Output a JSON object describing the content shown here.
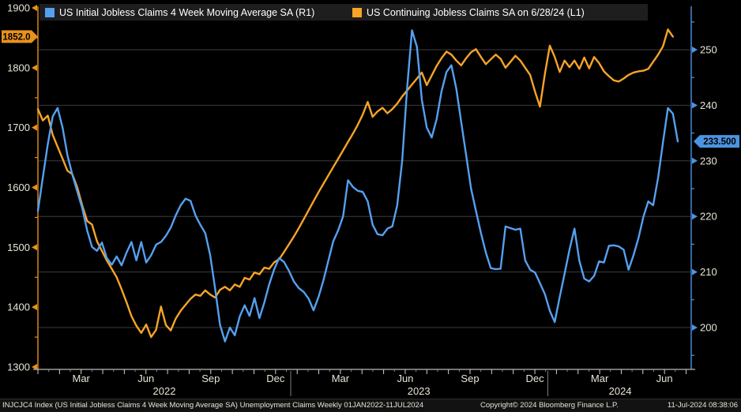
{
  "legend": {
    "items": [
      {
        "label": "US Initial Jobless Claims 4 Week Moving Average SA  (R1)",
        "color": "#55a0f0"
      },
      {
        "label": "US Continuing Jobless Claims SA  on 6/28/24 (L1)",
        "color": "#f7a428"
      }
    ]
  },
  "status_bar": {
    "description": "INJCJC4 Index (US Initial Jobless Claims 4 Week Moving Average SA) Unemployment Claims  Weekly 01JAN2022-11JUL2024",
    "copyright": "Copyright© 2024 Bloomberg Finance L.P.",
    "timestamp": "11-Jul-2024 08:38:06"
  },
  "chart_data": {
    "type": "line",
    "x_range_label": "01JAN2022-11JUL2024",
    "grid_color": "#3c3c3c",
    "left_axis": {
      "color": "#e8921c",
      "major_ticks": [
        1900,
        1800,
        1700,
        1600,
        1500,
        1400,
        1300
      ],
      "minor_ticks": [
        1850,
        1750,
        1650,
        1550,
        1450,
        1350
      ],
      "last_value": 1852.0,
      "last_value_label": "1852.0",
      "range": [
        1293,
        1903
      ]
    },
    "right_axis": {
      "color": "#4d93e0",
      "major_ticks": [
        250,
        240,
        230,
        220,
        210,
        200
      ],
      "minor_ticks": [
        255,
        245,
        235,
        225,
        215,
        205,
        195
      ],
      "last_value": 233.5,
      "last_value_label": "233.500",
      "range": [
        192,
        258
      ]
    },
    "x_axis": {
      "month_labels": [
        {
          "label": "Mar",
          "m": 2
        },
        {
          "label": "Jun",
          "m": 5
        },
        {
          "label": "Sep",
          "m": 8
        },
        {
          "label": "Dec",
          "m": 11
        },
        {
          "label": "Mar",
          "m": 14
        },
        {
          "label": "Jun",
          "m": 17
        },
        {
          "label": "Sep",
          "m": 20
        },
        {
          "label": "Dec",
          "m": 23
        },
        {
          "label": "Mar",
          "m": 26
        },
        {
          "label": "Jun",
          "m": 29
        }
      ],
      "year_labels": [
        {
          "label": "2022",
          "m": 5.85
        },
        {
          "label": "2023",
          "m": 17.63
        },
        {
          "label": "2024",
          "m": 26.95
        }
      ],
      "year_divider_m": [
        11.7,
        23.6
      ],
      "months_total": 30
    },
    "series": [
      {
        "name": "US Continuing Jobless Claims SA",
        "axis": "left",
        "color": "#f7a428",
        "values": [
          1731,
          1712,
          1720,
          1688,
          1668,
          1648,
          1628,
          1622,
          1600,
          1570,
          1544,
          1538,
          1510,
          1494,
          1478,
          1464,
          1450,
          1430,
          1408,
          1385,
          1369,
          1357,
          1371,
          1350,
          1362,
          1401,
          1370,
          1361,
          1381,
          1394,
          1404,
          1414,
          1421,
          1419,
          1428,
          1421,
          1416,
          1429,
          1434,
          1428,
          1438,
          1434,
          1449,
          1446,
          1458,
          1455,
          1466,
          1464,
          1475,
          1480,
          1492,
          1505,
          1518,
          1532,
          1547,
          1562,
          1577,
          1592,
          1606,
          1620,
          1634,
          1648,
          1662,
          1676,
          1690,
          1705,
          1722,
          1743,
          1718,
          1727,
          1733,
          1724,
          1731,
          1740,
          1752,
          1762,
          1772,
          1782,
          1792,
          1771,
          1787,
          1803,
          1816,
          1827,
          1822,
          1812,
          1804,
          1816,
          1826,
          1831,
          1818,
          1806,
          1814,
          1822,
          1815,
          1800,
          1810,
          1820,
          1812,
          1800,
          1788,
          1760,
          1735,
          1790,
          1837,
          1818,
          1793,
          1812,
          1801,
          1812,
          1798,
          1817,
          1799,
          1818,
          1808,
          1794,
          1786,
          1779,
          1777,
          1782,
          1788,
          1792,
          1794,
          1795,
          1798,
          1810,
          1822,
          1836,
          1864,
          1852
        ]
      },
      {
        "name": "US Initial Jobless Claims 4 Week Moving Average SA",
        "axis": "right",
        "color": "#55a0f0",
        "values": [
          221,
          227,
          233,
          238,
          239.5,
          236,
          231,
          227.5,
          224.5,
          221.5,
          217.5,
          214.5,
          213.8,
          215.3,
          212.5,
          211.3,
          212.8,
          211.2,
          213.5,
          215.4,
          212.1,
          215.4,
          211.7,
          213,
          214.9,
          215.4,
          216.5,
          218,
          220.2,
          222,
          223.2,
          222.8,
          220.2,
          218.5,
          217,
          213,
          207,
          200.5,
          197.5,
          200,
          198.6,
          202,
          204,
          202.1,
          205.3,
          201.7,
          204.5,
          207.8,
          210.5,
          212.5,
          211.8,
          210.2,
          208.3,
          207.1,
          206.4,
          205.2,
          203.1,
          205.5,
          208.5,
          212,
          215.5,
          217.5,
          220,
          226.5,
          225.3,
          224.6,
          224.4,
          222.7,
          218.5,
          216.8,
          216.6,
          217.8,
          218.2,
          222,
          230,
          243,
          253.5,
          250.5,
          241,
          236,
          234.2,
          237.5,
          242.5,
          246,
          247.2,
          243,
          237,
          231,
          225,
          221,
          217,
          213.5,
          210.7,
          210.5,
          210.6,
          218.2,
          217.9,
          217.6,
          217.8,
          212.1,
          210.4,
          209.9,
          208,
          206,
          203,
          201,
          205.5,
          209.7,
          214,
          217.8,
          212,
          208.8,
          208.3,
          209.3,
          211.9,
          211.7,
          214.7,
          214.8,
          214.6,
          214,
          210.4,
          213,
          216.1,
          219.9,
          222.7,
          222,
          227,
          233.4,
          239.5,
          238.5,
          233.5
        ]
      }
    ]
  }
}
